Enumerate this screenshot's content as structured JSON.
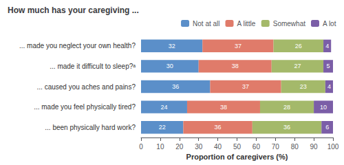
{
  "chart_data": {
    "type": "bar",
    "title": "How much has your caregiving ...",
    "orientation": "horizontal",
    "stacked": true,
    "data_labels": true,
    "grid": false,
    "legend": "upper right",
    "categories": [
      "... made you neglect your own health?",
      "... made it difficult to sleep?ᵃ",
      "... caused you aches and pains?",
      "... made you feel physically tired?",
      "... been physically hard work?"
    ],
    "series": [
      {
        "name": "Not at all",
        "color": "#5b8fc9",
        "values": [
          32,
          30,
          36,
          24,
          22
        ]
      },
      {
        "name": "A little",
        "color": "#e07b6a",
        "values": [
          37,
          38,
          37,
          38,
          36
        ]
      },
      {
        "name": "Somewhat",
        "color": "#a4b96a",
        "values": [
          26,
          27,
          23,
          28,
          36
        ]
      },
      {
        "name": "A lot",
        "color": "#7b5ea7",
        "values": [
          4,
          5,
          4,
          10,
          6
        ]
      }
    ],
    "xlabel": "Proportion of caregivers (%)",
    "xlim": [
      0,
      100
    ],
    "xticks": [
      0,
      10,
      20,
      30,
      40,
      50,
      60,
      70,
      80,
      90,
      100
    ]
  }
}
